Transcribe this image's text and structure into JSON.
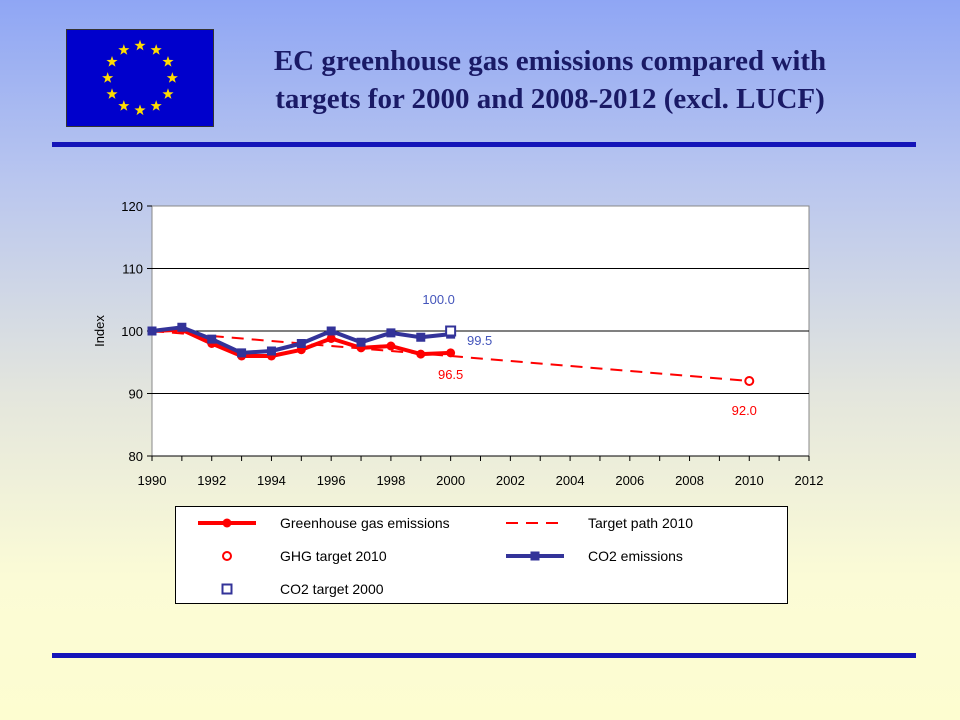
{
  "title_line1": "EC greenhouse gas emissions compared with",
  "title_line2": "targets for 2000 and 2008-2012 (excl. LUCF)",
  "flag": {
    "icon": "eu-flag",
    "star_color": "#ffdd00",
    "background": "#0000cc"
  },
  "chart_data": {
    "type": "line",
    "ylabel": "Index",
    "xlabel": "",
    "xlim": [
      1990,
      2012
    ],
    "ylim": [
      80,
      120
    ],
    "xticks": [
      1990,
      1992,
      1994,
      1996,
      1998,
      2000,
      2002,
      2004,
      2006,
      2008,
      2010,
      2012
    ],
    "yticks": [
      80,
      90,
      100,
      110,
      120
    ],
    "grid": "horizontal",
    "legend_position": "bottom",
    "series": [
      {
        "name": "Greenhouse gas emissions",
        "color": "#ff0000",
        "marker": "circle",
        "x": [
          1990,
          1991,
          1992,
          1993,
          1994,
          1995,
          1996,
          1997,
          1998,
          1999,
          2000
        ],
        "y": [
          100.0,
          100.2,
          98.0,
          96.0,
          96.0,
          97.0,
          98.8,
          97.3,
          97.6,
          96.3,
          96.5
        ]
      },
      {
        "name": "Target path 2010",
        "color": "#ff0000",
        "style": "dashed",
        "x": [
          1990,
          2010
        ],
        "y": [
          100.0,
          92.0
        ]
      },
      {
        "name": "GHG target 2010",
        "color": "#ff0000",
        "marker": "open-circle",
        "x": [
          2010
        ],
        "y": [
          92.0
        ]
      },
      {
        "name": "CO2 emissions",
        "color": "#333399",
        "marker": "square",
        "x": [
          1990,
          1991,
          1992,
          1993,
          1994,
          1995,
          1996,
          1997,
          1998,
          1999,
          2000
        ],
        "y": [
          100.0,
          100.6,
          98.7,
          96.5,
          96.8,
          98.0,
          100.0,
          98.2,
          99.7,
          99.0,
          99.5
        ]
      },
      {
        "name": "CO2 target 2000",
        "color": "#333399",
        "marker": "open-square",
        "x": [
          2000
        ],
        "y": [
          100.0
        ]
      }
    ],
    "annotations": [
      {
        "text": "100.0",
        "x": 2000,
        "y": 100.0,
        "color": "#4455bb"
      },
      {
        "text": "99.5",
        "x": 2000,
        "y": 99.5,
        "color": "#4455bb"
      },
      {
        "text": "96.5",
        "x": 2000,
        "y": 96.5,
        "color": "#ff0000"
      },
      {
        "text": "92.0",
        "x": 2010,
        "y": 92.0,
        "color": "#ff0000"
      }
    ]
  }
}
